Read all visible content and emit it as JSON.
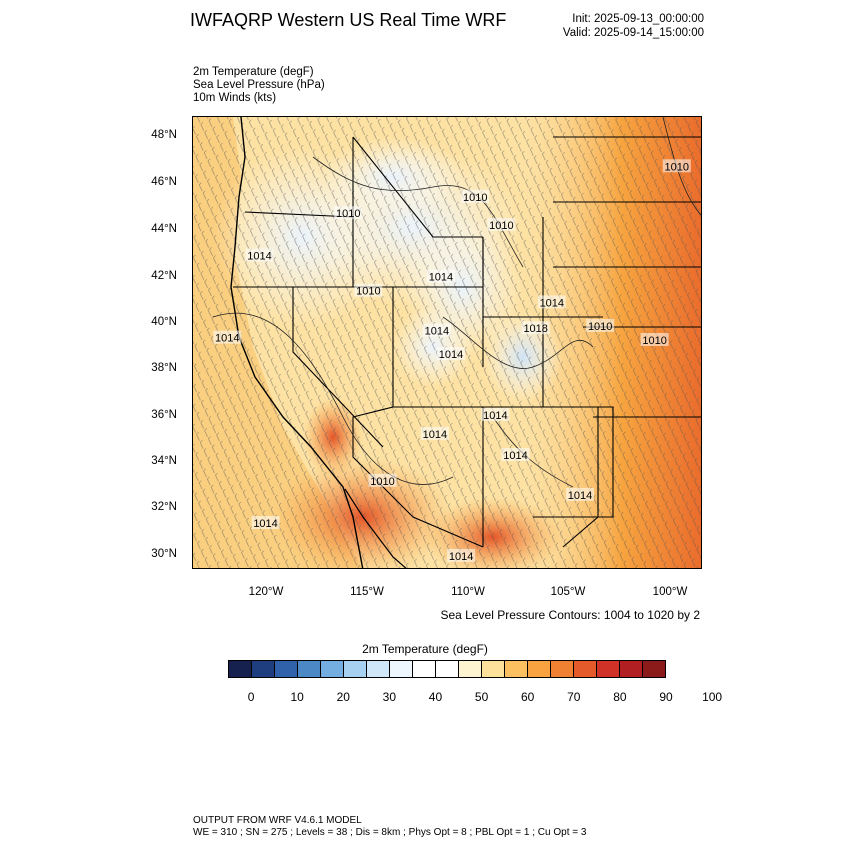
{
  "header": {
    "title": "IWFAQRP Western US Real Time WRF",
    "init": "Init: 2025-09-13_00:00:00",
    "valid": "Valid: 2025-09-14_15:00:00"
  },
  "variables": [
    "2m Temperature   (degF)",
    "Sea Level Pressure   (hPa)",
    "10m Winds   (kts)"
  ],
  "map": {
    "lat_labels": [
      "48°N",
      "46°N",
      "44°N",
      "42°N",
      "40°N",
      "38°N",
      "36°N",
      "34°N",
      "32°N",
      "30°N"
    ],
    "lon_labels": [
      "120°W",
      "115°W",
      "110°W",
      "105°W",
      "100°W"
    ],
    "pressure_labels": [
      {
        "text": "1010",
        "lon": -115.9,
        "lat": 44.6
      },
      {
        "text": "1010",
        "lon": -109.6,
        "lat": 45.3
      },
      {
        "text": "1010",
        "lon": -108.3,
        "lat": 44.1
      },
      {
        "text": "1010",
        "lon": -99.6,
        "lat": 46.6
      },
      {
        "text": "1014",
        "lon": -120.3,
        "lat": 42.8
      },
      {
        "text": "1010",
        "lon": -114.9,
        "lat": 41.3
      },
      {
        "text": "1014",
        "lon": -111.3,
        "lat": 41.9
      },
      {
        "text": "1014",
        "lon": -121.9,
        "lat": 39.3
      },
      {
        "text": "1014",
        "lon": -111.5,
        "lat": 39.6
      },
      {
        "text": "1014",
        "lon": -110.8,
        "lat": 38.6
      },
      {
        "text": "1014",
        "lon": -105.8,
        "lat": 40.8
      },
      {
        "text": "1018",
        "lon": -106.6,
        "lat": 39.7
      },
      {
        "text": "1010",
        "lon": -103.4,
        "lat": 39.8
      },
      {
        "text": "1010",
        "lon": -100.7,
        "lat": 39.2
      },
      {
        "text": "1014",
        "lon": -108.6,
        "lat": 36.0
      },
      {
        "text": "1014",
        "lon": -111.6,
        "lat": 35.2
      },
      {
        "text": "1014",
        "lon": -107.6,
        "lat": 34.3
      },
      {
        "text": "1014",
        "lon": -104.4,
        "lat": 32.6
      },
      {
        "text": "1010",
        "lon": -114.2,
        "lat": 33.2
      },
      {
        "text": "1014",
        "lon": -120.0,
        "lat": 31.4
      },
      {
        "text": "1014",
        "lon": -110.3,
        "lat": 30.0
      }
    ]
  },
  "contour_note": "Sea Level Pressure Contours: 1004 to 1020 by 2",
  "colorbar": {
    "title": "2m Temperature  (degF)",
    "labels": [
      "0",
      "10",
      "20",
      "30",
      "40",
      "50",
      "60",
      "70",
      "80",
      "90",
      "100"
    ],
    "colors": [
      "#16214f",
      "#1f3e80",
      "#2f62aa",
      "#4c88c6",
      "#74aee0",
      "#a6d1f0",
      "#cfe7f8",
      "#eef7fd",
      "#ffffff",
      "#ffffff",
      "#fff4d0",
      "#fee19a",
      "#fdc061",
      "#f9a340",
      "#f18132",
      "#e55a2b",
      "#d13227",
      "#b21f22",
      "#8b1a1a"
    ]
  },
  "footer": {
    "line1": "OUTPUT FROM WRF V4.6.1 MODEL",
    "line2": "WE = 310 ; SN = 275 ; Levels = 38 ; Dis = 8km ; Phys Opt = 8 ; PBL Opt = 1 ; Cu Opt = 3"
  }
}
